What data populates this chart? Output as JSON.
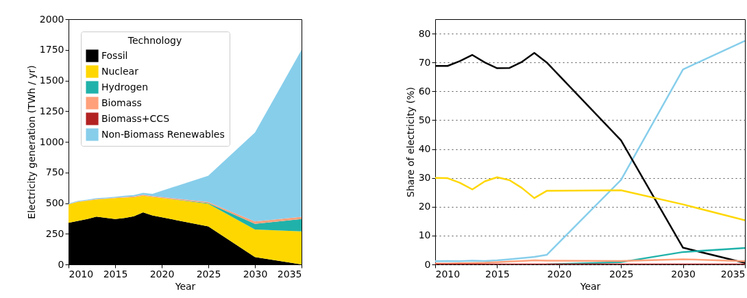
{
  "chart_data": [
    {
      "type": "area",
      "stacked": true,
      "xlabel": "Year",
      "ylabel": "Electricity generation (TWh / yr)",
      "legend_title": "Technology",
      "legend": "top left",
      "grid": false,
      "x": [
        2010,
        2011,
        2012,
        2013,
        2014,
        2015,
        2016,
        2017,
        2018,
        2019,
        2025,
        2030,
        2035
      ],
      "xlim": [
        2010,
        2035
      ],
      "xticks": [
        2010,
        2015,
        2020,
        2025,
        2030,
        2035
      ],
      "ylim": [
        0,
        2000
      ],
      "yticks": [
        0,
        250,
        500,
        750,
        1000,
        1250,
        1500,
        1750,
        2000
      ],
      "series": [
        {
          "name": "Fossil",
          "color": "#000000",
          "values": [
            340,
            355,
            370,
            390,
            380,
            370,
            378,
            392,
            425,
            400,
            310,
            60,
            0
          ]
        },
        {
          "name": "Nuclear",
          "color": "#ffd700",
          "values": [
            150,
            155,
            150,
            140,
            155,
            170,
            167,
            156,
            135,
            150,
            185,
            225,
            270
          ]
        },
        {
          "name": "Hydrogen",
          "color": "#20b2aa",
          "values": [
            0,
            0,
            0,
            0,
            0,
            0,
            0,
            0,
            0,
            0,
            5,
            46,
            100
          ]
        },
        {
          "name": "Biomass",
          "color": "#ffa07a",
          "values": [
            2,
            2,
            2,
            3,
            3,
            4,
            5,
            6,
            8,
            7,
            9,
            19,
            18
          ]
        },
        {
          "name": "Biomass+CCS",
          "color": "#b22222",
          "values": [
            null,
            null,
            null,
            null,
            null,
            null,
            null,
            null,
            null,
            null,
            null,
            null,
            null
          ]
        },
        {
          "name": "Non-Biomass Renewables",
          "color": "#87ceeb",
          "values": [
            5,
            6,
            6,
            7,
            7,
            8,
            10,
            12,
            16,
            19,
            215,
            725,
            1362
          ]
        }
      ]
    },
    {
      "type": "line",
      "xlabel": "Year",
      "ylabel": "Share of electricity (%)",
      "grid": "y",
      "legend": false,
      "x": [
        2010,
        2011,
        2012,
        2013,
        2014,
        2015,
        2016,
        2017,
        2018,
        2019,
        2025,
        2030,
        2035
      ],
      "xlim": [
        2010,
        2035
      ],
      "xticks": [
        2010,
        2015,
        2020,
        2025,
        2030,
        2035
      ],
      "ylim": [
        0,
        85
      ],
      "yticks": [
        0,
        10,
        20,
        30,
        40,
        50,
        60,
        70,
        80
      ],
      "series": [
        {
          "color": "#87ceeb",
          "values": [
            1.1,
            1.2,
            1.1,
            1.3,
            1.2,
            1.4,
            1.8,
            2.2,
            2.6,
            3.3,
            29.3,
            67.6,
            77.5
          ]
        },
        {
          "color": "#000000",
          "values": [
            68.8,
            68.8,
            70.5,
            72.6,
            70,
            68,
            68.1,
            70.2,
            73.3,
            70,
            43,
            5.8,
            0.5
          ]
        },
        {
          "color": "#ffd700",
          "values": [
            30,
            29.9,
            28.3,
            26,
            28.8,
            30.2,
            29.2,
            26.5,
            23,
            25.5,
            25.7,
            20.8,
            15.3
          ]
        },
        {
          "color": "#20b2aa",
          "values": [
            null,
            null,
            null,
            null,
            null,
            null,
            null,
            null,
            null,
            0,
            0.8,
            4.3,
            5.7
          ]
        },
        {
          "color": "#ffa07a",
          "values": [
            0.3,
            0.3,
            0.4,
            0.5,
            0.6,
            0.8,
            1,
            1.2,
            1.4,
            1.3,
            1.2,
            1.8,
            1.1
          ]
        },
        {
          "color": "#b22222",
          "values": [
            0,
            0,
            0,
            0,
            0,
            0,
            0,
            0,
            0,
            0,
            0,
            0,
            0
          ]
        }
      ]
    }
  ]
}
